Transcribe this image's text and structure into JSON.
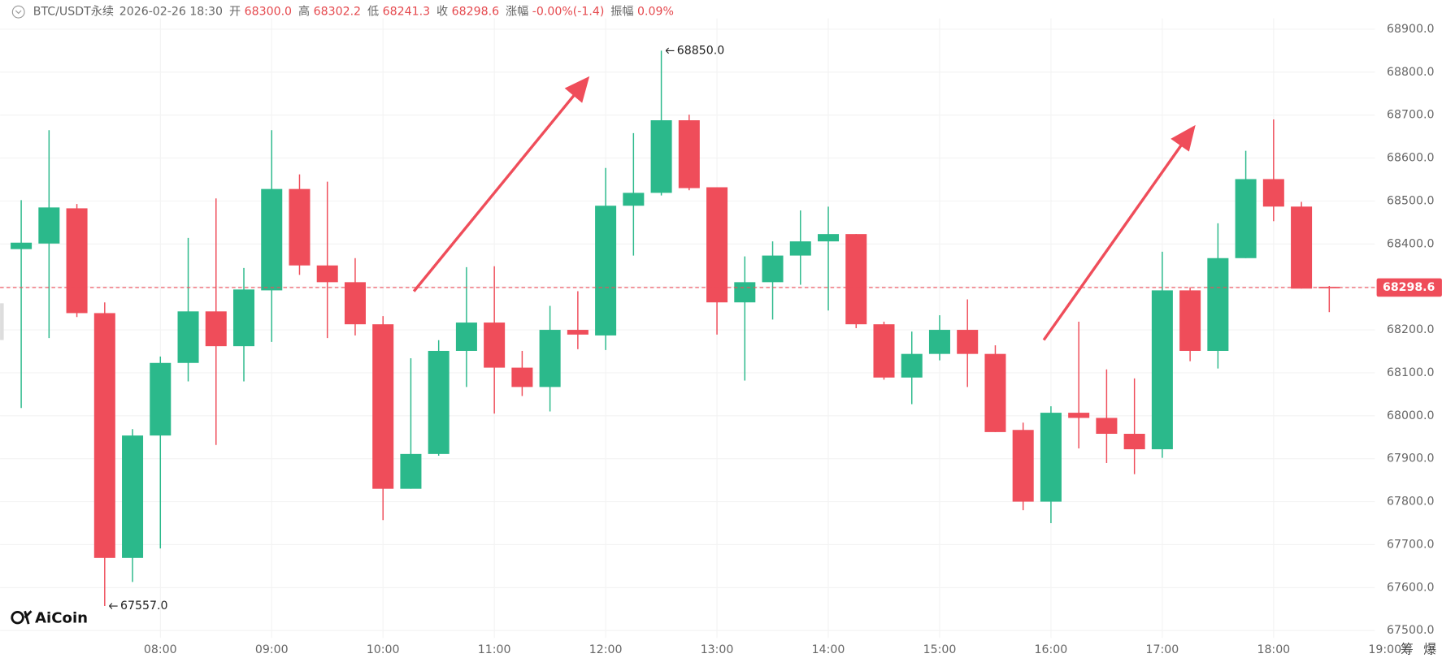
{
  "header": {
    "symbol": "BTC/USDT永续",
    "datetime": "2026-02-26 18:30",
    "fields": [
      {
        "label": "开",
        "value": "68300.0"
      },
      {
        "label": "高",
        "value": "68302.2"
      },
      {
        "label": "低",
        "value": "68241.3"
      },
      {
        "label": "收",
        "value": "68298.6"
      },
      {
        "label": "涨幅",
        "value": "-0.00%(-1.4)"
      },
      {
        "label": "振幅",
        "value": "0.09%"
      }
    ]
  },
  "brand": "AiCoin",
  "side_buttons": [
    "筹",
    "爆"
  ],
  "chart_data": {
    "type": "candlestick",
    "x": [
      6.75,
      7,
      7.25,
      7.5,
      7.75,
      8,
      8.25,
      8.5,
      8.75,
      9,
      9.25,
      9.5,
      9.75,
      10,
      10.25,
      10.5,
      10.75,
      11,
      11.25,
      11.5,
      11.75,
      12,
      12.25,
      12.5,
      12.75,
      13,
      13.25,
      13.5,
      13.75,
      14,
      14.25,
      14.5,
      14.75,
      15,
      15.25,
      15.5,
      15.75,
      16,
      16.25,
      16.5,
      16.75,
      17,
      17.25,
      17.5,
      17.75,
      18,
      18.25,
      18.5
    ],
    "open": [
      68388,
      68401,
      68483,
      68239,
      67669,
      67954,
      68123,
      68243,
      68162,
      68292,
      68528,
      68350,
      68311,
      68213,
      67830,
      67911,
      68151,
      68217,
      68112,
      68067,
      68200,
      68187,
      68489,
      68519,
      68688,
      68532,
      68264,
      68311,
      68373,
      68406,
      68423,
      68213,
      68089,
      68144,
      68200,
      68144,
      67967,
      67800,
      68007,
      67995,
      67958,
      67922,
      68292,
      68151,
      68367,
      68551,
      68487,
      68300
    ],
    "high": [
      68502,
      68665,
      68493,
      68264,
      67969,
      68138,
      68414,
      68506,
      68344,
      68665,
      68562,
      68545,
      68367,
      68232,
      68134,
      68176,
      68346,
      68348,
      68151,
      68256,
      68290,
      68577,
      68658,
      68850,
      68701,
      68532,
      68371,
      68406,
      68478,
      68487,
      68423,
      68219,
      68196,
      68234,
      68271,
      68164,
      67984,
      68022,
      68219,
      68108,
      68087,
      68382,
      68299,
      68448,
      68617,
      68690,
      68498,
      68302.2
    ],
    "low": [
      68018,
      68181,
      68230,
      67557,
      67613,
      67691,
      68080,
      67932,
      68080,
      68172,
      68328,
      68181,
      68187,
      67757,
      67830,
      67907,
      68067,
      68005,
      68046,
      68010,
      68155,
      68153,
      68373,
      68513,
      68525,
      68189,
      68082,
      68224,
      68305,
      68245,
      68204,
      68084,
      68027,
      68129,
      68067,
      67962,
      67780,
      67750,
      67924,
      67890,
      67864,
      67902,
      68127,
      68110,
      68367,
      68453,
      68296,
      68241.3
    ],
    "close": [
      68403,
      68485,
      68239,
      67669,
      67954,
      68123,
      68243,
      68162,
      68294,
      68528,
      68350,
      68311,
      68213,
      67830,
      67911,
      68151,
      68217,
      68112,
      68067,
      68200,
      68189,
      68489,
      68519,
      68688,
      68530,
      68264,
      68311,
      68373,
      68406,
      68423,
      68213,
      68089,
      68144,
      68200,
      68144,
      67962,
      67800,
      68007,
      67995,
      67958,
      67922,
      68292,
      68151,
      68367,
      68551,
      68487,
      68296,
      68298.6
    ],
    "up_color": "#2bb98b",
    "down_color": "#ef4d5a",
    "xlim": [
      6.56,
      19.0
    ],
    "xticks": [
      {
        "value": 8,
        "label": "08:00"
      },
      {
        "value": 9,
        "label": "09:00"
      },
      {
        "value": 10,
        "label": "10:00"
      },
      {
        "value": 11,
        "label": "11:00"
      },
      {
        "value": 12,
        "label": "12:00"
      },
      {
        "value": 13,
        "label": "13:00"
      },
      {
        "value": 14,
        "label": "14:00"
      },
      {
        "value": 15,
        "label": "15:00"
      },
      {
        "value": 16,
        "label": "16:00"
      },
      {
        "value": 17,
        "label": "17:00"
      },
      {
        "value": 18,
        "label": "18:00"
      },
      {
        "value": 19,
        "label": "19:00"
      }
    ],
    "ylim": [
      67436,
      68968
    ],
    "yticks": [
      {
        "value": 67500,
        "label": "67500.0"
      },
      {
        "value": 67600,
        "label": "67600.0"
      },
      {
        "value": 67700,
        "label": "67700.0"
      },
      {
        "value": 67800,
        "label": "67800.0"
      },
      {
        "value": 67900,
        "label": "67900.0"
      },
      {
        "value": 68000,
        "label": "68000.0"
      },
      {
        "value": 68100,
        "label": "68100.0"
      },
      {
        "value": 68200,
        "label": "68200.0"
      },
      {
        "value": 68300,
        "label": "68300.0"
      },
      {
        "value": 68400,
        "label": "68400.0"
      },
      {
        "value": 68500,
        "label": "68500.0"
      },
      {
        "value": 68600,
        "label": "68600.0"
      },
      {
        "value": 68700,
        "label": "68700.0"
      },
      {
        "value": 68800,
        "label": "68800.0"
      },
      {
        "value": 68900,
        "label": "68900.0"
      }
    ],
    "grid": true,
    "annotations": [
      {
        "x": 12.5,
        "value": 68850,
        "label": "68850.0"
      },
      {
        "x": 7.5,
        "value": 67557,
        "label": "67557.0"
      }
    ],
    "last_price": {
      "value": 68298.6,
      "label": "68298.6"
    }
  }
}
